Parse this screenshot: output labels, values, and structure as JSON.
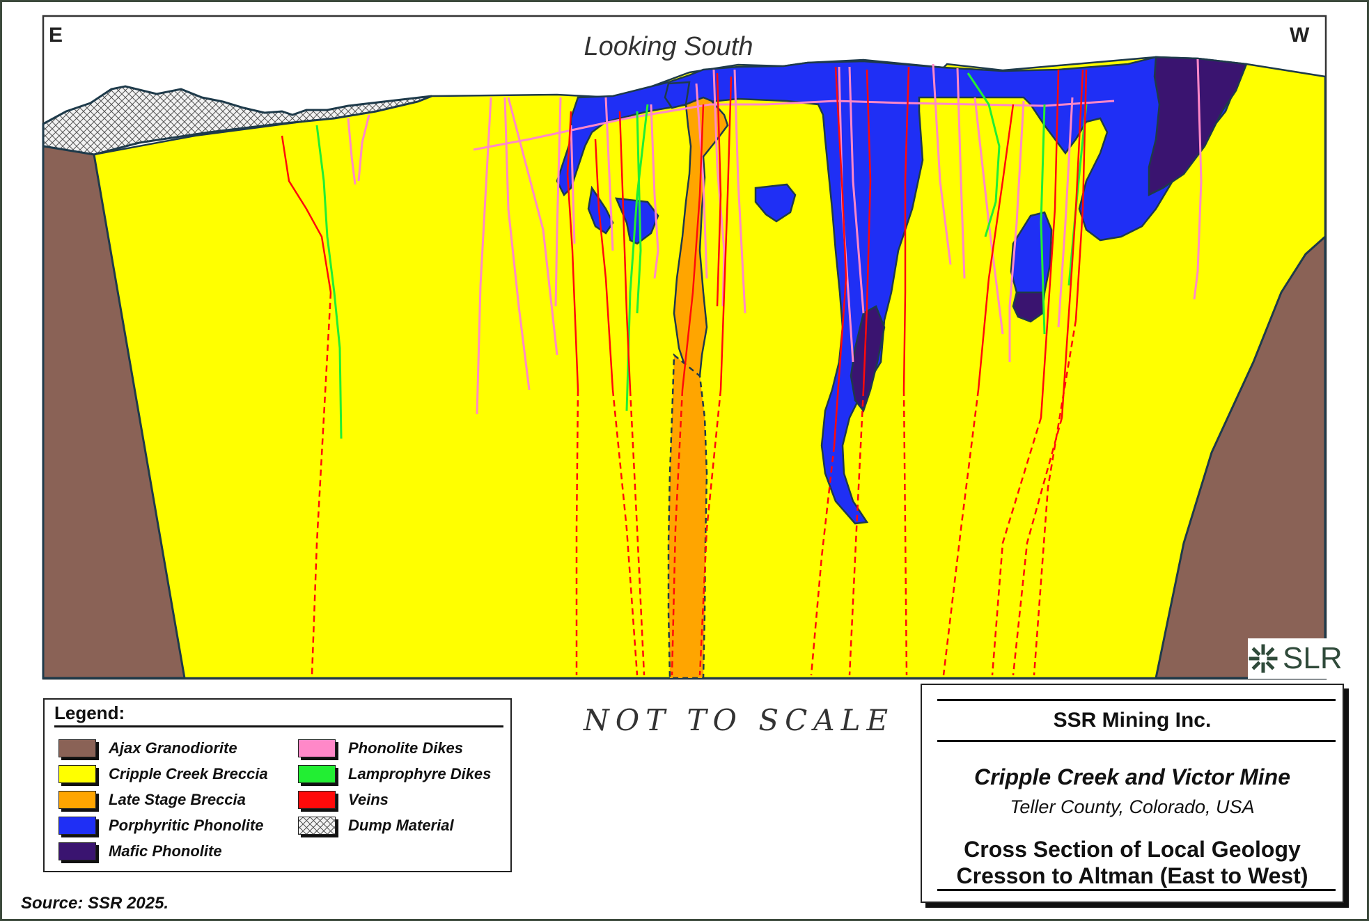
{
  "diagram": {
    "east_label": "E",
    "west_label": "W",
    "view_label": "Looking South",
    "scale_note": "NOT TO SCALE"
  },
  "legend": {
    "title": "Legend:",
    "items": [
      {
        "label": "Ajax Granodiorite",
        "color": "#8a6256",
        "pattern": "solid"
      },
      {
        "label": "Cripple Creek Breccia",
        "color": "#ffff00",
        "pattern": "solid"
      },
      {
        "label": "Late Stage Breccia",
        "color": "#ffa500",
        "pattern": "solid"
      },
      {
        "label": "Porphyritic Phonolite",
        "color": "#1f2ff5",
        "pattern": "solid"
      },
      {
        "label": "Mafic Phonolite",
        "color": "#3a1470",
        "pattern": "solid"
      },
      {
        "label": "Phonolite Dikes",
        "color": "#ff88c8",
        "pattern": "solid"
      },
      {
        "label": "Lamprophyre Dikes",
        "color": "#22ee33",
        "pattern": "solid"
      },
      {
        "label": "Veins",
        "color": "#ff0a0a",
        "pattern": "solid"
      },
      {
        "label": "Dump Material",
        "color": "#cccccc",
        "pattern": "crosshatch"
      }
    ]
  },
  "title_block": {
    "company": "SSR Mining Inc.",
    "mine": "Cripple Creek and Victor Mine",
    "location": "Teller County, Colorado, USA",
    "title_line1": "Cross Section of Local Geology",
    "title_line2": "Cresson to Altman (East to West)"
  },
  "logo": {
    "text": "SLR",
    "icon": "slr-asterisk-icon",
    "color": "#2f4a3a"
  },
  "source": "Source: SSR 2025."
}
